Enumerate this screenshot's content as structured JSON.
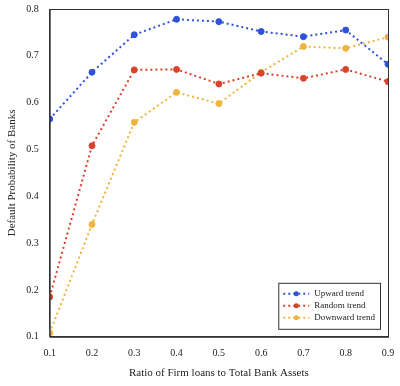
{
  "chart_data": {
    "type": "line",
    "x_label": "Ratio of Firm loans to Total Bank Assets",
    "y_label": "Default Probability of Banks",
    "x": [
      0.1,
      0.2,
      0.3,
      0.4,
      0.5,
      0.6,
      0.7,
      0.8,
      0.9
    ],
    "series": [
      {
        "name": "Upward trend",
        "color": "#2f52d9",
        "marker": "circle",
        "line_style": "dotted",
        "values": [
          0.565,
          0.665,
          0.745,
          0.778,
          0.773,
          0.752,
          0.741,
          0.755,
          0.682
        ]
      },
      {
        "name": "Random trend",
        "color": "#d9422b",
        "marker": "circle",
        "line_style": "dotted",
        "values": [
          0.185,
          0.508,
          0.67,
          0.671,
          0.64,
          0.663,
          0.652,
          0.671,
          0.645
        ]
      },
      {
        "name": "Downward trend",
        "color": "#efb43c",
        "marker": "circle",
        "line_style": "dotted",
        "values": [
          0.108,
          0.34,
          0.558,
          0.622,
          0.598,
          0.665,
          0.72,
          0.716,
          0.74
        ]
      }
    ],
    "xlim": [
      0.1,
      0.9
    ],
    "xticks": [
      0.1,
      0.2,
      0.3,
      0.4,
      0.5,
      0.6,
      0.7,
      0.8,
      0.9
    ],
    "ylim": [
      0.1,
      0.8
    ],
    "yticks": [
      0.1,
      0.2,
      0.3,
      0.4,
      0.5,
      0.6,
      0.7,
      0.8
    ],
    "grid": false,
    "legend": "lower right"
  }
}
